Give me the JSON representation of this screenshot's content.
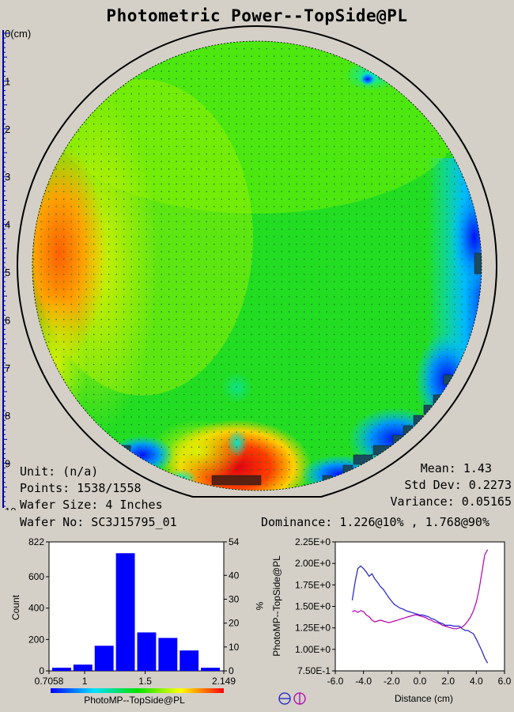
{
  "title": "Photometric Power--TopSide@PL",
  "ruler": {
    "unit_label": "0(cm)",
    "ticks": [
      "1",
      "2",
      "3",
      "4",
      "5",
      "6",
      "7",
      "8",
      "9",
      "10"
    ]
  },
  "info": {
    "unit": "Unit: (n/a)",
    "points": "Points: 1538/1558",
    "wafer_size": "Wafer Size: 4 Inches",
    "wafer_no": "Wafer No: SC3J15795_01",
    "mean": "Mean: 1.43",
    "std_dev": "Std Dev: 0.2273",
    "variance": "Variance: 0.05165",
    "dominance": "Dominance: 1.226@10% , 1.768@90%"
  },
  "colors": {
    "background": "#d4d0c8",
    "bar": "#0000ff",
    "series1": "#1f1fc8",
    "series2": "#b000b0"
  },
  "chart_data": [
    {
      "type": "heatmap",
      "title": "Photometric Power--TopSide@PL",
      "description_scale": [
        "blue",
        "cyan",
        "green",
        "yellow",
        "red"
      ],
      "value_range": [
        0.7058,
        2.149
      ]
    },
    {
      "type": "bar",
      "xlabel": "PhotoMP--TopSide@PL",
      "ylabel": "Count",
      "y2label": "%",
      "x_ticks": [
        "0.7058",
        "1",
        "1.5",
        "2.149"
      ],
      "y_ticks": [
        "0",
        "200",
        "400",
        "600",
        "822"
      ],
      "y2_ticks": [
        "0",
        "10",
        "20",
        "30",
        "40",
        "54"
      ],
      "ylim": [
        0,
        822
      ],
      "values": [
        20,
        40,
        160,
        750,
        245,
        210,
        130,
        20
      ]
    },
    {
      "type": "line",
      "xlabel": "Distance (cm)",
      "ylabel": "PhotoMP--TopSide@PL",
      "x_ticks": [
        "-6.0",
        "-4.0",
        "-2.0",
        "0.0",
        "2.0",
        "4.0",
        "6.0"
      ],
      "y_ticks": [
        "7.50E-1",
        "1.00E+0",
        "1.25E+0",
        "1.50E+0",
        "1.75E+0",
        "2.00E+0",
        "2.25E+0"
      ],
      "xlim": [
        -6,
        6
      ],
      "ylim": [
        0.75,
        2.25
      ],
      "series": [
        {
          "x": [
            -4.8,
            -4.6,
            -4.4,
            -4.2,
            -4.0,
            -3.8,
            -3.6,
            -3.4,
            -3.2,
            -3.0,
            -2.8,
            -2.6,
            -2.4,
            -2.2,
            -2.0,
            -1.8,
            -1.6,
            -1.4,
            -1.2,
            -1.0,
            -0.8,
            -0.6,
            -0.4,
            -0.2,
            0.0,
            0.2,
            0.4,
            0.6,
            0.8,
            1.0,
            1.2,
            1.4,
            1.6,
            1.8,
            2.0,
            2.2,
            2.4,
            2.6,
            2.8,
            3.0,
            3.2,
            3.4,
            3.6,
            3.8,
            4.0,
            4.2,
            4.4,
            4.6,
            4.8
          ],
          "y": [
            1.57,
            1.78,
            1.94,
            1.97,
            1.94,
            1.9,
            1.85,
            1.88,
            1.82,
            1.78,
            1.73,
            1.7,
            1.65,
            1.6,
            1.56,
            1.52,
            1.5,
            1.48,
            1.47,
            1.45,
            1.44,
            1.43,
            1.42,
            1.41,
            1.4,
            1.4,
            1.39,
            1.38,
            1.36,
            1.35,
            1.33,
            1.31,
            1.3,
            1.28,
            1.28,
            1.28,
            1.27,
            1.27,
            1.27,
            1.24,
            1.22,
            1.22,
            1.2,
            1.18,
            1.12,
            1.05,
            0.98,
            0.9,
            0.84
          ]
        },
        {
          "x": [
            -4.8,
            -4.6,
            -4.4,
            -4.2,
            -4.0,
            -3.8,
            -3.6,
            -3.4,
            -3.2,
            -3.0,
            -2.8,
            -2.6,
            -2.4,
            -2.2,
            -2.0,
            -1.8,
            -1.6,
            -1.4,
            -1.2,
            -1.0,
            -0.8,
            -0.6,
            -0.4,
            -0.2,
            0.0,
            0.2,
            0.4,
            0.6,
            0.8,
            1.0,
            1.2,
            1.4,
            1.6,
            1.8,
            2.0,
            2.2,
            2.4,
            2.6,
            2.8,
            3.0,
            3.2,
            3.4,
            3.6,
            3.8,
            4.0,
            4.2,
            4.4,
            4.6,
            4.8
          ],
          "y": [
            1.44,
            1.45,
            1.43,
            1.45,
            1.44,
            1.4,
            1.38,
            1.34,
            1.32,
            1.33,
            1.34,
            1.33,
            1.32,
            1.31,
            1.32,
            1.33,
            1.34,
            1.35,
            1.36,
            1.37,
            1.38,
            1.39,
            1.4,
            1.4,
            1.39,
            1.38,
            1.37,
            1.35,
            1.34,
            1.32,
            1.31,
            1.3,
            1.28,
            1.27,
            1.26,
            1.25,
            1.24,
            1.24,
            1.25,
            1.26,
            1.29,
            1.33,
            1.38,
            1.45,
            1.55,
            1.7,
            1.9,
            2.1,
            2.16
          ]
        }
      ]
    }
  ],
  "legend_icons": [
    "blue-circle-line-icon",
    "magenta-circle-cross-icon"
  ]
}
